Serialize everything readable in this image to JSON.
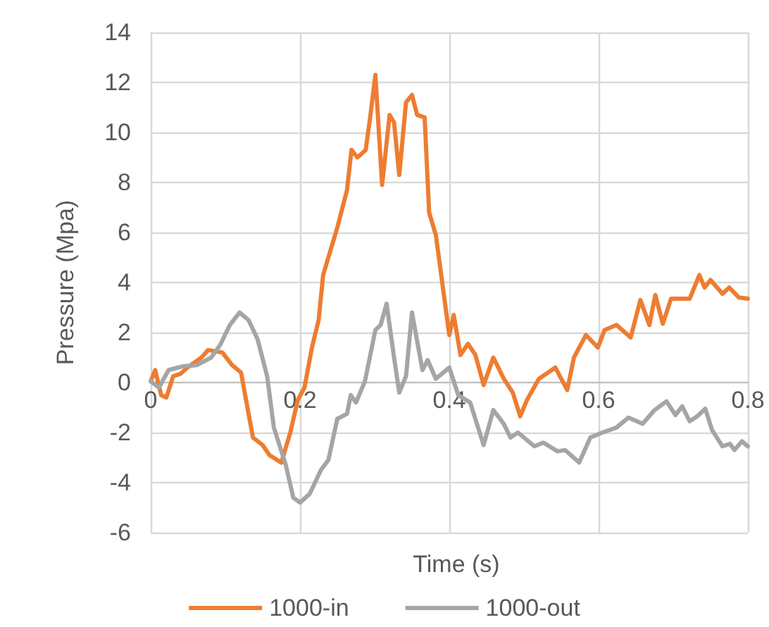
{
  "chart_data": {
    "type": "line",
    "xlabel": "Time (s)",
    "ylabel": "Pressure (Mpa)",
    "xlim": [
      0,
      0.8
    ],
    "xticks": [
      0,
      0.2,
      0.4,
      0.6,
      0.8
    ],
    "ylim": [
      -6,
      14
    ],
    "yticks": [
      -6,
      -4,
      -2,
      0,
      2,
      4,
      6,
      8,
      10,
      12,
      14
    ],
    "grid": true,
    "legend": "bottom",
    "marker": "none",
    "line_style": "solid",
    "series": [
      {
        "name": "1000-in",
        "color": "#ed7d31",
        "x": [
          0,
          0.006,
          0.014,
          0.021,
          0.03,
          0.04,
          0.049,
          0.068,
          0.077,
          0.096,
          0.109,
          0.121,
          0.137,
          0.15,
          0.159,
          0.175,
          0.187,
          0.197,
          0.206,
          0.216,
          0.225,
          0.231,
          0.25,
          0.263,
          0.269,
          0.277,
          0.288,
          0.294,
          0.301,
          0.31,
          0.32,
          0.326,
          0.333,
          0.342,
          0.35,
          0.357,
          0.367,
          0.373,
          0.382,
          0.4,
          0.406,
          0.415,
          0.425,
          0.435,
          0.446,
          0.459,
          0.473,
          0.485,
          0.495,
          0.504,
          0.52,
          0.542,
          0.558,
          0.567,
          0.583,
          0.599,
          0.608,
          0.624,
          0.643,
          0.656,
          0.668,
          0.676,
          0.686,
          0.697,
          0.722,
          0.735,
          0.742,
          0.75,
          0.766,
          0.775,
          0.788,
          0.8
        ],
        "values": [
          0.05,
          0.5,
          -0.5,
          -0.6,
          0.25,
          0.35,
          0.6,
          1.0,
          1.3,
          1.2,
          0.7,
          0.4,
          -2.2,
          -2.5,
          -2.9,
          -3.2,
          -2.0,
          -0.7,
          -0.2,
          1.4,
          2.5,
          4.3,
          6.2,
          7.7,
          9.3,
          9.0,
          9.3,
          10.6,
          12.3,
          7.9,
          10.7,
          10.4,
          8.3,
          11.2,
          11.5,
          10.7,
          10.6,
          6.8,
          5.9,
          1.9,
          2.7,
          1.1,
          1.55,
          1.1,
          -0.1,
          1.0,
          0.15,
          -0.4,
          -1.35,
          -0.7,
          0.15,
          0.6,
          -0.3,
          1.0,
          1.9,
          1.4,
          2.1,
          2.3,
          1.8,
          3.3,
          2.3,
          3.5,
          2.35,
          3.35,
          3.35,
          4.3,
          3.8,
          4.1,
          3.55,
          3.8,
          3.4,
          3.35
        ]
      },
      {
        "name": "1000-out",
        "color": "#a5a5a5",
        "x": [
          0,
          0.011,
          0.024,
          0.043,
          0.062,
          0.081,
          0.093,
          0.106,
          0.119,
          0.131,
          0.143,
          0.156,
          0.165,
          0.181,
          0.191,
          0.2,
          0.213,
          0.228,
          0.238,
          0.25,
          0.263,
          0.268,
          0.275,
          0.287,
          0.301,
          0.308,
          0.316,
          0.326,
          0.333,
          0.342,
          0.35,
          0.364,
          0.371,
          0.382,
          0.4,
          0.412,
          0.428,
          0.446,
          0.459,
          0.473,
          0.482,
          0.492,
          0.514,
          0.526,
          0.545,
          0.555,
          0.574,
          0.589,
          0.605,
          0.624,
          0.64,
          0.659,
          0.675,
          0.691,
          0.703,
          0.712,
          0.722,
          0.732,
          0.743,
          0.752,
          0.766,
          0.776,
          0.782,
          0.792,
          0.8
        ],
        "values": [
          0.05,
          -0.2,
          0.5,
          0.65,
          0.7,
          1.0,
          1.5,
          2.3,
          2.8,
          2.5,
          1.75,
          0.25,
          -1.8,
          -3.3,
          -4.6,
          -4.8,
          -4.45,
          -3.5,
          -3.1,
          -1.45,
          -1.25,
          -0.5,
          -0.8,
          0.05,
          2.1,
          2.3,
          3.15,
          1.0,
          -0.4,
          0.25,
          2.8,
          0.5,
          0.9,
          0.15,
          0.6,
          -0.5,
          -0.8,
          -2.5,
          -1.1,
          -1.65,
          -2.2,
          -2.0,
          -2.55,
          -2.4,
          -2.75,
          -2.7,
          -3.2,
          -2.2,
          -2.0,
          -1.8,
          -1.4,
          -1.65,
          -1.1,
          -0.75,
          -1.3,
          -0.95,
          -1.55,
          -1.35,
          -1.05,
          -1.9,
          -2.55,
          -2.45,
          -2.7,
          -2.35,
          -2.55
        ]
      }
    ]
  }
}
